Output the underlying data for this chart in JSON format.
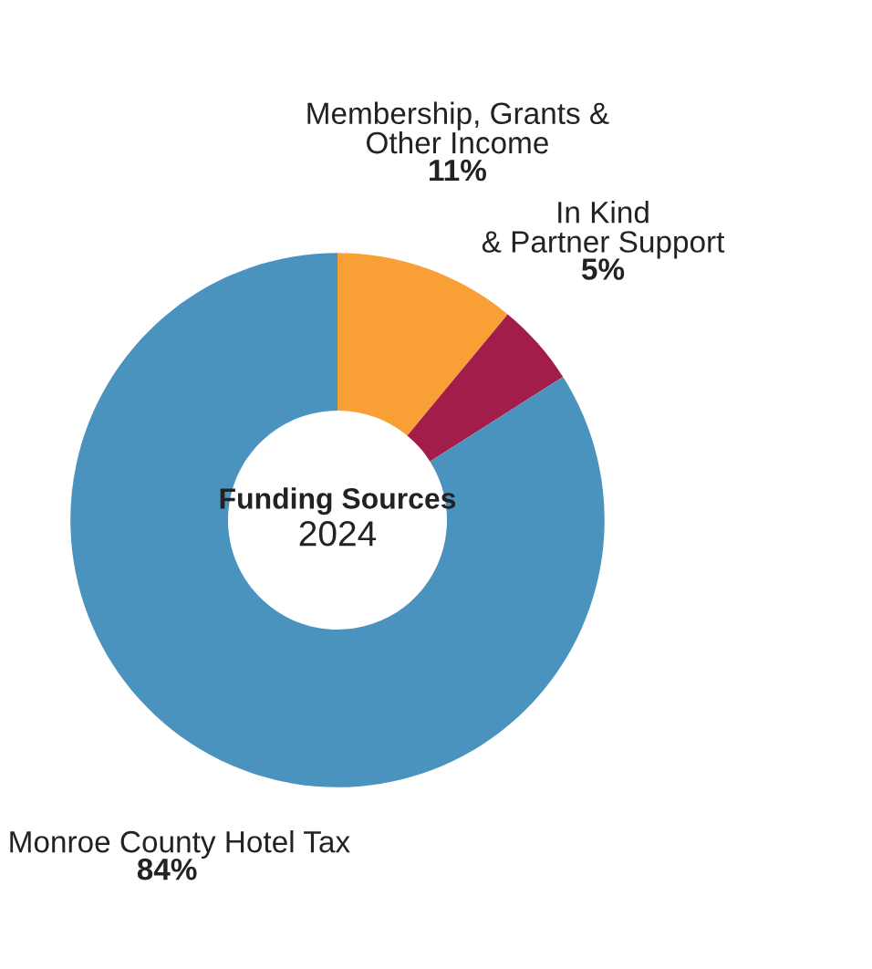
{
  "chart_data": {
    "type": "donut",
    "title": "Funding Sources",
    "subtitle": "2024",
    "categories": [
      "Membership, Grants &\nOther Income",
      "In Kind\n& Partner Support",
      "Monroe County Hotel Tax"
    ],
    "values": [
      11,
      5,
      84
    ],
    "colors": [
      "#f8a035",
      "#a31d4a",
      "#4a93bf"
    ],
    "value_labels": [
      "11%",
      "5%",
      "84%"
    ],
    "legend": false
  }
}
